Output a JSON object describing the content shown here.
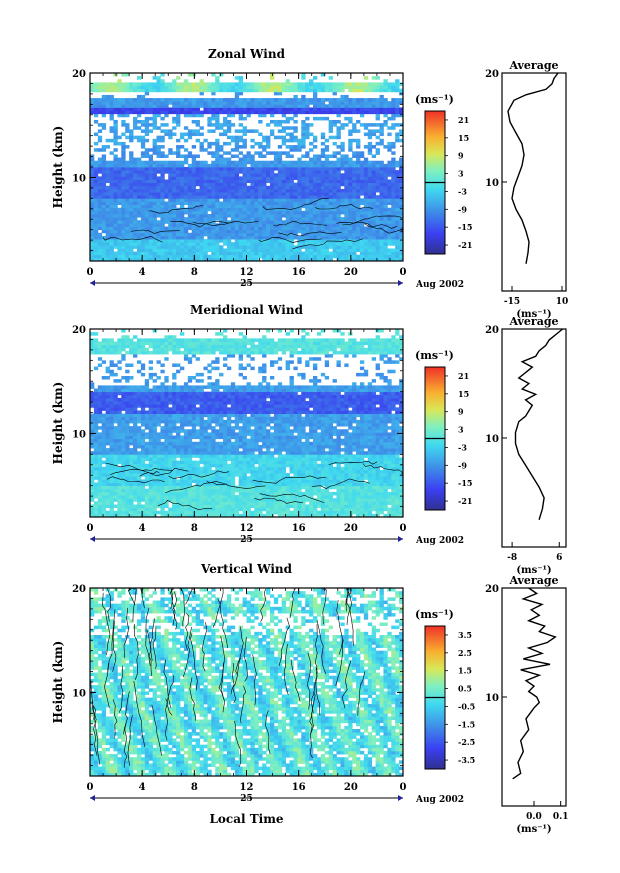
{
  "figure": {
    "date_label": "Aug 2002",
    "day_label": "25",
    "xlabel": "Local Time",
    "ylabel": "Height (km)",
    "unit_label": "(ms⁻¹)"
  },
  "chart_data": [
    {
      "type": "heatmap",
      "title": "Zonal Wind",
      "x_ticks": [
        "0",
        "4",
        "8",
        "12",
        "16",
        "20",
        "0"
      ],
      "xlim": [
        0,
        24
      ],
      "y_ticks": [
        "20",
        "10"
      ],
      "ylim": [
        2,
        20
      ],
      "colorbar_ticks": [
        "21",
        "15",
        "9",
        "3",
        "-3",
        "-9",
        "-15",
        "-21"
      ],
      "colorbar_range": [
        -24,
        24
      ],
      "profile": {
        "title": "Average",
        "x_ticks": [
          "-15",
          "10"
        ],
        "xlim": [
          -20,
          12
        ],
        "points": [
          [
            -8,
            2.5
          ],
          [
            -7,
            3.5
          ],
          [
            -6.5,
            4.5
          ],
          [
            -8,
            5.5
          ],
          [
            -10,
            6.5
          ],
          [
            -13,
            7.5
          ],
          [
            -15,
            8.5
          ],
          [
            -14,
            9.5
          ],
          [
            -12,
            10.5
          ],
          [
            -10,
            11.5
          ],
          [
            -9,
            12.5
          ],
          [
            -10,
            13.5
          ],
          [
            -13,
            14.5
          ],
          [
            -16,
            15.5
          ],
          [
            -17,
            16.5
          ],
          [
            -14,
            17.5
          ],
          [
            -8,
            18
          ],
          [
            2,
            18.5
          ],
          [
            5,
            19
          ],
          [
            6,
            19.5
          ],
          [
            8,
            20
          ]
        ]
      }
    },
    {
      "type": "heatmap",
      "title": "Meridional Wind",
      "x_ticks": [
        "0",
        "4",
        "8",
        "12",
        "16",
        "20",
        "0"
      ],
      "xlim": [
        0,
        24
      ],
      "y_ticks": [
        "20",
        "10"
      ],
      "ylim": [
        2,
        20
      ],
      "colorbar_ticks": [
        "21",
        "15",
        "9",
        "3",
        "-3",
        "-9",
        "-15",
        "-21"
      ],
      "colorbar_range": [
        -24,
        24
      ],
      "profile": {
        "title": "Average",
        "x_ticks": [
          "-8",
          "6"
        ],
        "xlim": [
          -11,
          8
        ],
        "points": [
          [
            0,
            2.5
          ],
          [
            1,
            3.5
          ],
          [
            1.5,
            4.5
          ],
          [
            0,
            5.5
          ],
          [
            -2,
            6.5
          ],
          [
            -4,
            7.5
          ],
          [
            -6,
            8.5
          ],
          [
            -7,
            9.5
          ],
          [
            -7,
            10.5
          ],
          [
            -6,
            11.5
          ],
          [
            -4,
            12
          ],
          [
            -3,
            12.5
          ],
          [
            -2,
            13
          ],
          [
            -4,
            13.5
          ],
          [
            -1,
            14
          ],
          [
            -5,
            14.5
          ],
          [
            -3,
            15
          ],
          [
            -6,
            15.5
          ],
          [
            -4,
            16
          ],
          [
            -2,
            16.5
          ],
          [
            -5,
            17
          ],
          [
            -1,
            17.5
          ],
          [
            0,
            18
          ],
          [
            2,
            18.5
          ],
          [
            3,
            19
          ],
          [
            5,
            19.5
          ],
          [
            7,
            20
          ]
        ]
      }
    },
    {
      "type": "heatmap",
      "title": "Vertical Wind",
      "x_ticks": [
        "0",
        "4",
        "8",
        "12",
        "16",
        "20",
        "0"
      ],
      "xlim": [
        0,
        24
      ],
      "y_ticks": [
        "20",
        "10"
      ],
      "ylim": [
        2,
        20
      ],
      "colorbar_ticks": [
        "3.5",
        "2.5",
        "1.5",
        "0.5",
        "-0.5",
        "-1.5",
        "-2.5",
        "-3.5"
      ],
      "colorbar_range": [
        -4,
        4
      ],
      "profile": {
        "title": "Average",
        "x_ticks": [
          "0.0",
          "0.1"
        ],
        "xlim": [
          -0.12,
          0.12
        ],
        "points": [
          [
            -0.08,
            2.5
          ],
          [
            -0.05,
            3
          ],
          [
            -0.06,
            4
          ],
          [
            -0.04,
            5
          ],
          [
            -0.05,
            6
          ],
          [
            -0.02,
            7
          ],
          [
            -0.03,
            8
          ],
          [
            0,
            9
          ],
          [
            0.02,
            9.5
          ],
          [
            0.01,
            10
          ],
          [
            -0.02,
            10.5
          ],
          [
            0,
            11
          ],
          [
            -0.03,
            11.5
          ],
          [
            0.02,
            12
          ],
          [
            -0.05,
            12.5
          ],
          [
            0.06,
            13
          ],
          [
            -0.04,
            13.5
          ],
          [
            0.03,
            14
          ],
          [
            -0.02,
            14.5
          ],
          [
            0.05,
            15
          ],
          [
            0.08,
            15.5
          ],
          [
            0.02,
            16
          ],
          [
            0.04,
            16.5
          ],
          [
            -0.02,
            17
          ],
          [
            0.02,
            17.5
          ],
          [
            -0.01,
            18
          ],
          [
            0.03,
            18.5
          ],
          [
            -0.04,
            19
          ],
          [
            0.01,
            19.5
          ],
          [
            -0.02,
            20
          ]
        ]
      }
    }
  ]
}
